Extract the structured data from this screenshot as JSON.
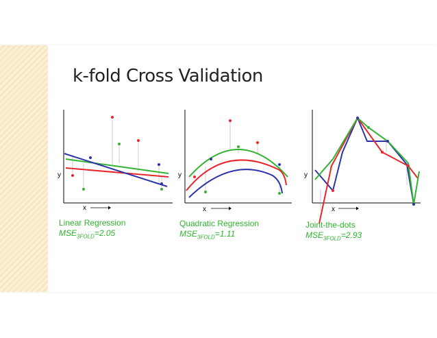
{
  "slide": {
    "title": "k-fold Cross Validation"
  },
  "panels": [
    {
      "caption": "Linear Regression",
      "mse_prefix": "MSE",
      "mse_sub": "3FOLD",
      "mse_value": "=2.05",
      "x_label": "x",
      "y_label": "y"
    },
    {
      "caption": "Quadratic Regression",
      "mse_prefix": "MSE",
      "mse_sub": "3FOLD",
      "mse_value": "=1.11",
      "x_label": "x",
      "y_label": "y"
    },
    {
      "caption": "Joint-the-dots",
      "mse_prefix": "MSE",
      "mse_sub": "3FOLD",
      "mse_value": "=2.93",
      "x_label": "x",
      "y_label": "y"
    }
  ],
  "colors": {
    "red": "#e8262a",
    "green": "#32b432",
    "blue": "#2b34a8",
    "caption": "#2db32d"
  }
}
